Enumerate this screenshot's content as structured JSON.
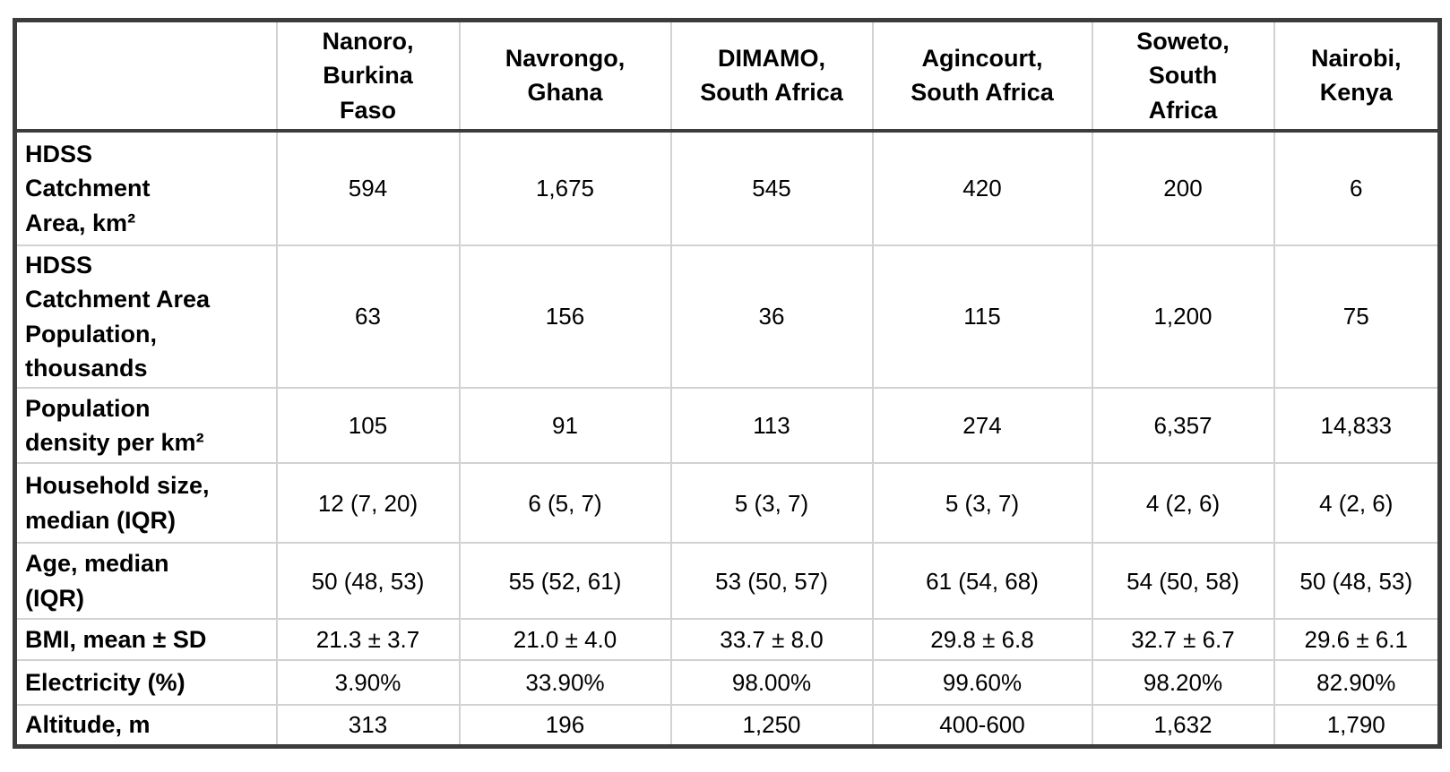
{
  "table": {
    "colors": {
      "border_dark": "#3c3c3c",
      "border_light": "#d2d2d2",
      "text": "#000000",
      "background": "#ffffff"
    },
    "columns": [
      {
        "label": ""
      },
      {
        "label": "Nanoro,\nBurkina\nFaso"
      },
      {
        "label": "Navrongo,\nGhana"
      },
      {
        "label": "DIMAMO,\nSouth Africa"
      },
      {
        "label": "Agincourt,\nSouth Africa"
      },
      {
        "label": "Soweto,\nSouth\nAfrica"
      },
      {
        "label": "Nairobi,\nKenya"
      }
    ],
    "rows": [
      {
        "label": "HDSS\nCatchment\nArea, km²",
        "values": [
          "594",
          "1,675",
          "545",
          "420",
          "200",
          "6"
        ]
      },
      {
        "label": "HDSS\nCatchment Area\nPopulation,\nthousands",
        "values": [
          "63",
          "156",
          "36",
          "115",
          "1,200",
          "75"
        ]
      },
      {
        "label": "Population\ndensity per km²",
        "values": [
          "105",
          "91",
          "113",
          "274",
          "6,357",
          "14,833"
        ]
      },
      {
        "label": "Household size,\nmedian (IQR)",
        "values": [
          "12 (7, 20)",
          "6 (5, 7)",
          "5 (3, 7)",
          "5 (3, 7)",
          "4 (2, 6)",
          "4 (2, 6)"
        ]
      },
      {
        "label": "Age, median\n(IQR)",
        "values": [
          "50 (48, 53)",
          "55 (52, 61)",
          "53 (50, 57)",
          "61 (54, 68)",
          "54 (50, 58)",
          "50 (48, 53)"
        ]
      },
      {
        "label": "BMI, mean ± SD",
        "values": [
          "21.3 ± 3.7",
          "21.0 ± 4.0",
          "33.7 ± 8.0",
          "29.8 ± 6.8",
          "32.7 ± 6.7",
          "29.6 ± 6.1"
        ]
      },
      {
        "label": "Electricity (%)",
        "values": [
          "3.90%",
          "33.90%",
          "98.00%",
          "99.60%",
          "98.20%",
          "82.90%"
        ]
      },
      {
        "label": "Altitude, m",
        "values": [
          "313",
          "196",
          "1,250",
          "400-600",
          "1,632",
          "1,790"
        ]
      }
    ]
  }
}
